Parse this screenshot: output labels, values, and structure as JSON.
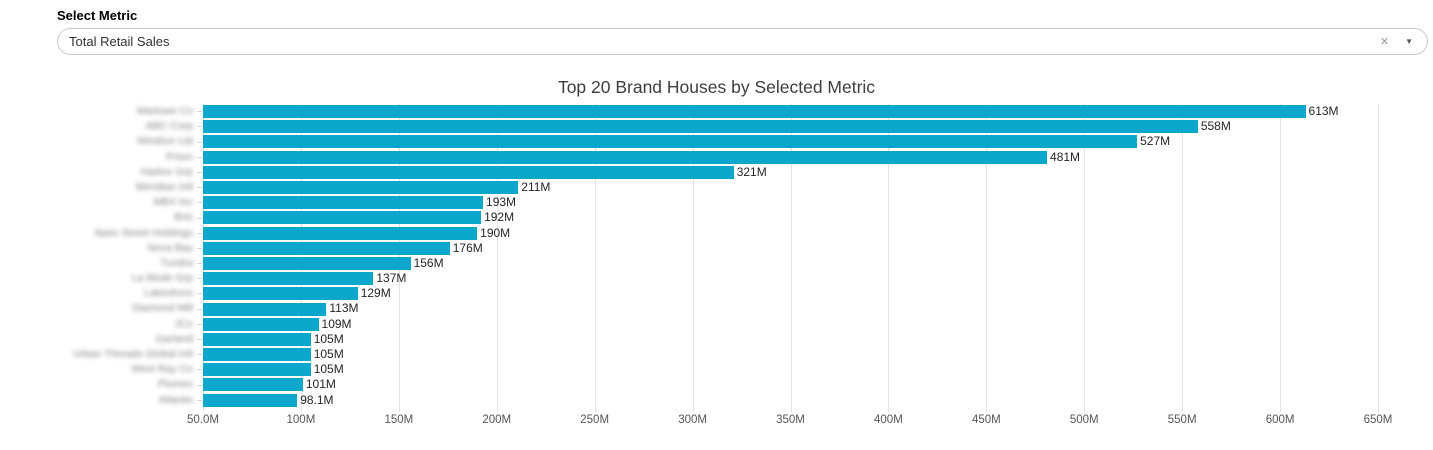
{
  "filter": {
    "label": "Select Metric",
    "value": "Total Retail Sales",
    "clear_icon": "✕",
    "caret_icon": "▼"
  },
  "chart_data": {
    "type": "bar",
    "orientation": "horizontal",
    "title": "Top 20 Brand Houses by Selected Metric",
    "xlabel": "",
    "ylabel": "",
    "legend": false,
    "grid": true,
    "xlim": [
      50,
      650
    ],
    "bar_color": "#0ca8cc",
    "categories_redacted": true,
    "categories": [
      "Marlowe Co",
      "ABC Corp",
      "Windsor Ltd",
      "Prism",
      "Harbor Grp",
      "Meridian Intl",
      "MBX Inc",
      "Brio",
      "Apex Street Holdings",
      "Nova Bay",
      "Tundra",
      "La Mode Grp",
      "Lakeshore",
      "Diamond Mill",
      "JCo",
      "Garland",
      "Urban Threads Global Intl",
      "West Ray Co",
      "Plumes",
      "Atlantis"
    ],
    "values": [
      613,
      558,
      527,
      481,
      321,
      211,
      193,
      192,
      190,
      176,
      156,
      137,
      129,
      113,
      109,
      105,
      105,
      105,
      101,
      98.1
    ],
    "value_labels": [
      "613M",
      "558M",
      "527M",
      "481M",
      "321M",
      "211M",
      "193M",
      "192M",
      "190M",
      "176M",
      "156M",
      "137M",
      "129M",
      "113M",
      "109M",
      "105M",
      "105M",
      "105M",
      "101M",
      "98.1M"
    ],
    "x_ticks": [
      {
        "value": 50,
        "label": "50.0M"
      },
      {
        "value": 100,
        "label": "100M"
      },
      {
        "value": 150,
        "label": "150M"
      },
      {
        "value": 200,
        "label": "200M"
      },
      {
        "value": 250,
        "label": "250M"
      },
      {
        "value": 300,
        "label": "300M"
      },
      {
        "value": 350,
        "label": "350M"
      },
      {
        "value": 400,
        "label": "400M"
      },
      {
        "value": 450,
        "label": "450M"
      },
      {
        "value": 500,
        "label": "500M"
      },
      {
        "value": 550,
        "label": "550M"
      },
      {
        "value": 600,
        "label": "600M"
      },
      {
        "value": 650,
        "label": "650M"
      }
    ]
  }
}
